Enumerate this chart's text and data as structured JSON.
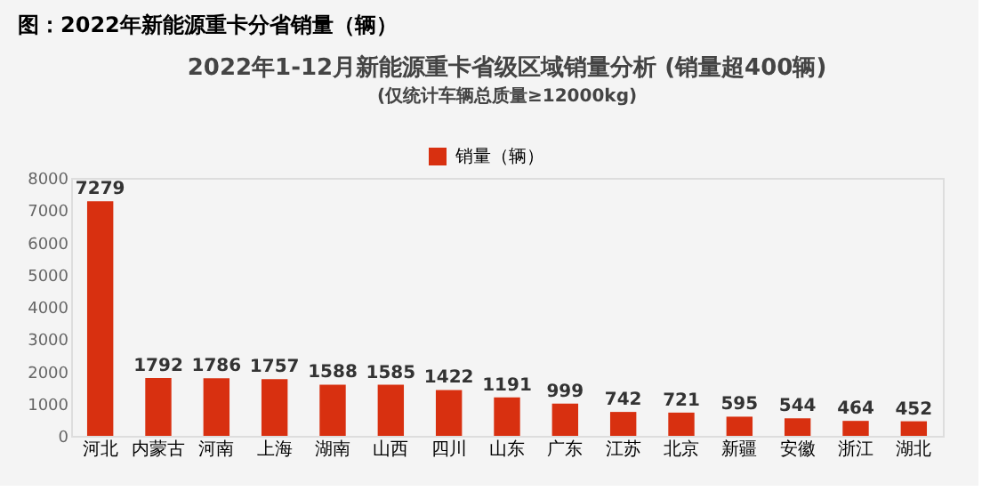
{
  "chart_data": {
    "type": "bar",
    "title": "2022年1-12月新能源重卡省级区域销量分析 (销量超400辆)",
    "subtitle": "(仅统计车辆总质量≥12000kg)",
    "annotations": [
      "图：2022年新能源重卡分省销量（辆）"
    ],
    "categories": [
      "河北",
      "内蒙古",
      "河南",
      "上海",
      "湖南",
      "山西",
      "四川",
      "山东",
      "广东",
      "江苏",
      "北京",
      "新疆",
      "安徽",
      "浙江",
      "湖北"
    ],
    "series": [
      {
        "name": "销量（辆）",
        "color": "#d83010",
        "values": [
          7279,
          1792,
          1786,
          1757,
          1588,
          1585,
          1422,
          1191,
          999,
          742,
          721,
          595,
          544,
          464,
          452
        ]
      }
    ],
    "ylim": [
      0,
      8000
    ],
    "yticks": [
      0,
      1000,
      2000,
      3000,
      4000,
      5000,
      6000,
      7000,
      8000
    ],
    "data_labels": true,
    "grid": false,
    "legend": "top"
  }
}
